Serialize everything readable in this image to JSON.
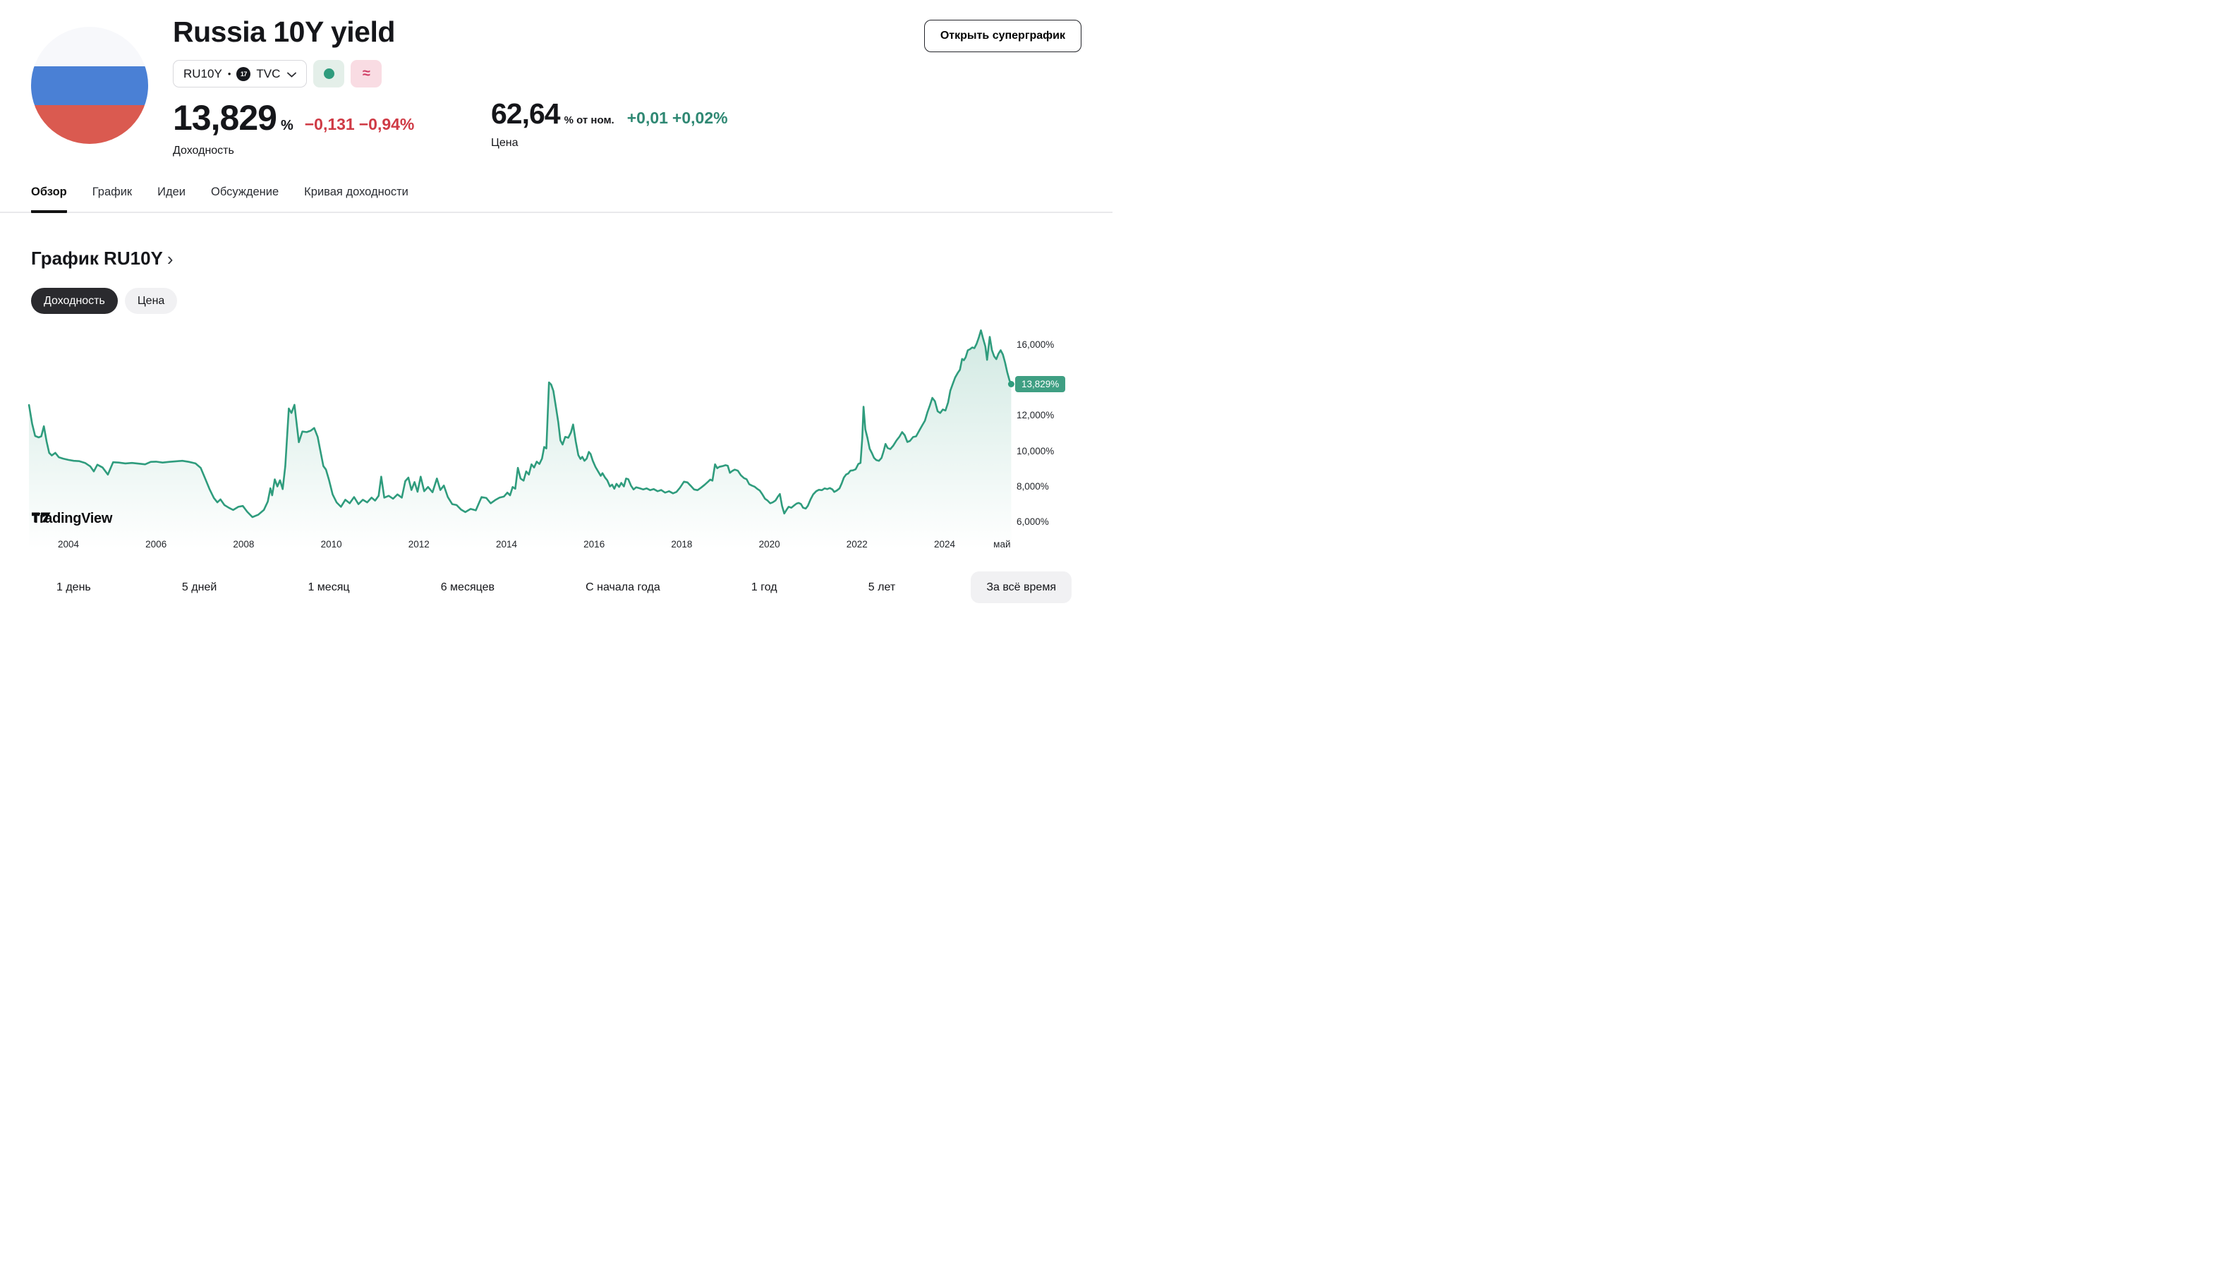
{
  "header": {
    "title": "Russia 10Y yield",
    "symbol": "RU10Y",
    "bullet": "•",
    "tv_monogram": "17",
    "exchange": "TVC",
    "open_superchart_label": "Открыть суперграфик",
    "yield": {
      "value": "13,829",
      "unit": "%",
      "change_abs": "−0,131",
      "change_pct": "−0,94%",
      "label": "Доходность"
    },
    "price": {
      "value": "62,64",
      "unit": "% от ном.",
      "change_abs": "+0,01",
      "change_pct": "+0,02%",
      "label": "Цена"
    }
  },
  "tabs": [
    {
      "label": "Обзор",
      "active": true
    },
    {
      "label": "График",
      "active": false
    },
    {
      "label": "Идеи",
      "active": false
    },
    {
      "label": "Обсуждение",
      "active": false
    },
    {
      "label": "Кривая доходности",
      "active": false
    }
  ],
  "section": {
    "title": "График RU10Y",
    "chevron": "›",
    "toggles": [
      {
        "label": "Доходность",
        "active": true
      },
      {
        "label": "Цена",
        "active": false
      }
    ]
  },
  "chart_data": {
    "type": "area",
    "series_name": "RU10Y yield, %",
    "title": "График RU10Y",
    "grid": false,
    "legend_position": "none",
    "last_value_label": "13,829%",
    "ylim": [
      5.6,
      17.4
    ],
    "xlim": [
      2003.1,
      2025.7
    ],
    "y_ticks": [
      {
        "value": 16,
        "label": "16,000%"
      },
      {
        "value": 14,
        "label": "14,000%"
      },
      {
        "value": 12,
        "label": "12,000%"
      },
      {
        "value": 10,
        "label": "10,000%"
      },
      {
        "value": 8,
        "label": "8,000%"
      },
      {
        "value": 6,
        "label": "6,000%"
      }
    ],
    "x_ticks": [
      {
        "value": 2004,
        "label": "2004"
      },
      {
        "value": 2006,
        "label": "2006"
      },
      {
        "value": 2008,
        "label": "2008"
      },
      {
        "value": 2010,
        "label": "2010"
      },
      {
        "value": 2012,
        "label": "2012"
      },
      {
        "value": 2014,
        "label": "2014"
      },
      {
        "value": 2016,
        "label": "2016"
      },
      {
        "value": 2018,
        "label": "2018"
      },
      {
        "value": 2020,
        "label": "2020"
      },
      {
        "value": 2022,
        "label": "2022"
      },
      {
        "value": 2024,
        "label": "2024"
      },
      {
        "value": 2025.31,
        "label": "май"
      }
    ],
    "points": [
      [
        2003.1,
        12.65
      ],
      [
        2003.17,
        11.6
      ],
      [
        2003.24,
        10.9
      ],
      [
        2003.32,
        10.82
      ],
      [
        2003.38,
        10.88
      ],
      [
        2003.44,
        11.45
      ],
      [
        2003.5,
        10.6
      ],
      [
        2003.56,
        9.95
      ],
      [
        2003.62,
        9.8
      ],
      [
        2003.7,
        9.95
      ],
      [
        2003.78,
        9.7
      ],
      [
        2003.88,
        9.62
      ],
      [
        2004.0,
        9.55
      ],
      [
        2004.12,
        9.5
      ],
      [
        2004.25,
        9.48
      ],
      [
        2004.38,
        9.38
      ],
      [
        2004.5,
        9.18
      ],
      [
        2004.58,
        8.9
      ],
      [
        2004.66,
        9.28
      ],
      [
        2004.78,
        9.12
      ],
      [
        2004.9,
        8.72
      ],
      [
        2005.02,
        9.42
      ],
      [
        2005.15,
        9.4
      ],
      [
        2005.3,
        9.35
      ],
      [
        2005.45,
        9.38
      ],
      [
        2005.6,
        9.34
      ],
      [
        2005.75,
        9.3
      ],
      [
        2005.88,
        9.44
      ],
      [
        2006.0,
        9.45
      ],
      [
        2006.15,
        9.4
      ],
      [
        2006.3,
        9.44
      ],
      [
        2006.45,
        9.47
      ],
      [
        2006.6,
        9.5
      ],
      [
        2006.75,
        9.44
      ],
      [
        2006.9,
        9.35
      ],
      [
        2007.02,
        9.1
      ],
      [
        2007.12,
        8.5
      ],
      [
        2007.22,
        7.9
      ],
      [
        2007.32,
        7.4
      ],
      [
        2007.4,
        7.15
      ],
      [
        2007.47,
        7.32
      ],
      [
        2007.56,
        7.0
      ],
      [
        2007.66,
        6.85
      ],
      [
        2007.76,
        6.72
      ],
      [
        2007.88,
        6.9
      ],
      [
        2007.98,
        6.95
      ],
      [
        2008.08,
        6.62
      ],
      [
        2008.2,
        6.32
      ],
      [
        2008.33,
        6.45
      ],
      [
        2008.46,
        6.72
      ],
      [
        2008.55,
        7.2
      ],
      [
        2008.61,
        7.95
      ],
      [
        2008.65,
        7.55
      ],
      [
        2008.71,
        8.45
      ],
      [
        2008.77,
        8.05
      ],
      [
        2008.83,
        8.4
      ],
      [
        2008.89,
        7.9
      ],
      [
        2008.95,
        9.2
      ],
      [
        2009.03,
        12.45
      ],
      [
        2009.09,
        12.2
      ],
      [
        2009.16,
        12.66
      ],
      [
        2009.26,
        10.55
      ],
      [
        2009.34,
        11.15
      ],
      [
        2009.44,
        11.12
      ],
      [
        2009.53,
        11.2
      ],
      [
        2009.61,
        11.35
      ],
      [
        2009.69,
        10.85
      ],
      [
        2009.76,
        9.95
      ],
      [
        2009.82,
        9.2
      ],
      [
        2009.88,
        9.0
      ],
      [
        2009.95,
        8.4
      ],
      [
        2010.03,
        7.6
      ],
      [
        2010.12,
        7.15
      ],
      [
        2010.22,
        6.9
      ],
      [
        2010.32,
        7.3
      ],
      [
        2010.42,
        7.1
      ],
      [
        2010.52,
        7.45
      ],
      [
        2010.62,
        7.05
      ],
      [
        2010.72,
        7.3
      ],
      [
        2010.82,
        7.15
      ],
      [
        2010.92,
        7.42
      ],
      [
        2011.0,
        7.25
      ],
      [
        2011.08,
        7.52
      ],
      [
        2011.14,
        8.6
      ],
      [
        2011.21,
        7.42
      ],
      [
        2011.31,
        7.52
      ],
      [
        2011.41,
        7.36
      ],
      [
        2011.51,
        7.6
      ],
      [
        2011.61,
        7.42
      ],
      [
        2011.69,
        8.35
      ],
      [
        2011.76,
        8.55
      ],
      [
        2011.83,
        7.85
      ],
      [
        2011.9,
        8.3
      ],
      [
        2011.97,
        7.75
      ],
      [
        2012.04,
        8.6
      ],
      [
        2012.12,
        7.78
      ],
      [
        2012.21,
        8.02
      ],
      [
        2012.31,
        7.72
      ],
      [
        2012.41,
        8.5
      ],
      [
        2012.49,
        7.85
      ],
      [
        2012.57,
        8.1
      ],
      [
        2012.66,
        7.45
      ],
      [
        2012.76,
        7.05
      ],
      [
        2012.86,
        7.0
      ],
      [
        2012.96,
        6.75
      ],
      [
        2013.06,
        6.6
      ],
      [
        2013.18,
        6.78
      ],
      [
        2013.3,
        6.7
      ],
      [
        2013.43,
        7.45
      ],
      [
        2013.54,
        7.4
      ],
      [
        2013.64,
        7.1
      ],
      [
        2013.74,
        7.28
      ],
      [
        2013.84,
        7.42
      ],
      [
        2013.94,
        7.48
      ],
      [
        2014.02,
        7.7
      ],
      [
        2014.08,
        7.55
      ],
      [
        2014.14,
        8.02
      ],
      [
        2014.2,
        7.92
      ],
      [
        2014.26,
        9.1
      ],
      [
        2014.32,
        8.5
      ],
      [
        2014.39,
        8.38
      ],
      [
        2014.45,
        8.9
      ],
      [
        2014.51,
        8.72
      ],
      [
        2014.57,
        9.3
      ],
      [
        2014.63,
        9.12
      ],
      [
        2014.69,
        9.45
      ],
      [
        2014.75,
        9.32
      ],
      [
        2014.81,
        9.62
      ],
      [
        2014.86,
        10.28
      ],
      [
        2014.91,
        10.2
      ],
      [
        2014.97,
        13.93
      ],
      [
        2015.02,
        13.8
      ],
      [
        2015.07,
        13.45
      ],
      [
        2015.13,
        12.5
      ],
      [
        2015.18,
        11.7
      ],
      [
        2015.23,
        10.65
      ],
      [
        2015.28,
        10.42
      ],
      [
        2015.34,
        10.85
      ],
      [
        2015.41,
        10.8
      ],
      [
        2015.47,
        11.1
      ],
      [
        2015.52,
        11.55
      ],
      [
        2015.58,
        10.6
      ],
      [
        2015.64,
        9.82
      ],
      [
        2015.69,
        9.6
      ],
      [
        2015.73,
        9.72
      ],
      [
        2015.78,
        9.5
      ],
      [
        2015.83,
        9.62
      ],
      [
        2015.88,
        10.0
      ],
      [
        2015.92,
        9.88
      ],
      [
        2015.97,
        9.5
      ],
      [
        2016.03,
        9.15
      ],
      [
        2016.09,
        8.9
      ],
      [
        2016.15,
        8.65
      ],
      [
        2016.19,
        8.8
      ],
      [
        2016.25,
        8.55
      ],
      [
        2016.3,
        8.4
      ],
      [
        2016.36,
        8.05
      ],
      [
        2016.41,
        8.15
      ],
      [
        2016.46,
        7.92
      ],
      [
        2016.51,
        8.2
      ],
      [
        2016.57,
        8.02
      ],
      [
        2016.62,
        8.25
      ],
      [
        2016.68,
        8.05
      ],
      [
        2016.73,
        8.5
      ],
      [
        2016.78,
        8.46
      ],
      [
        2016.84,
        8.1
      ],
      [
        2016.9,
        7.88
      ],
      [
        2016.96,
        8.0
      ],
      [
        2017.04,
        7.95
      ],
      [
        2017.12,
        7.88
      ],
      [
        2017.2,
        7.94
      ],
      [
        2017.28,
        7.84
      ],
      [
        2017.36,
        7.9
      ],
      [
        2017.45,
        7.78
      ],
      [
        2017.53,
        7.85
      ],
      [
        2017.62,
        7.7
      ],
      [
        2017.71,
        7.78
      ],
      [
        2017.8,
        7.66
      ],
      [
        2017.88,
        7.74
      ],
      [
        2017.96,
        7.98
      ],
      [
        2018.05,
        8.32
      ],
      [
        2018.13,
        8.28
      ],
      [
        2018.2,
        8.1
      ],
      [
        2018.28,
        7.88
      ],
      [
        2018.36,
        7.84
      ],
      [
        2018.44,
        7.98
      ],
      [
        2018.52,
        8.14
      ],
      [
        2018.6,
        8.32
      ],
      [
        2018.65,
        8.44
      ],
      [
        2018.7,
        8.38
      ],
      [
        2018.76,
        9.3
      ],
      [
        2018.81,
        9.08
      ],
      [
        2018.86,
        9.16
      ],
      [
        2018.93,
        9.2
      ],
      [
        2019.0,
        9.25
      ],
      [
        2019.05,
        9.22
      ],
      [
        2019.1,
        8.82
      ],
      [
        2019.15,
        8.92
      ],
      [
        2019.21,
        9.0
      ],
      [
        2019.28,
        8.94
      ],
      [
        2019.35,
        8.68
      ],
      [
        2019.42,
        8.52
      ],
      [
        2019.48,
        8.46
      ],
      [
        2019.54,
        8.18
      ],
      [
        2019.6,
        8.1
      ],
      [
        2019.66,
        8.04
      ],
      [
        2019.72,
        7.92
      ],
      [
        2019.78,
        7.82
      ],
      [
        2019.84,
        7.6
      ],
      [
        2019.9,
        7.36
      ],
      [
        2019.96,
        7.25
      ],
      [
        2020.02,
        7.1
      ],
      [
        2020.08,
        7.16
      ],
      [
        2020.14,
        7.26
      ],
      [
        2020.19,
        7.46
      ],
      [
        2020.24,
        7.62
      ],
      [
        2020.29,
        6.95
      ],
      [
        2020.34,
        6.52
      ],
      [
        2020.39,
        6.72
      ],
      [
        2020.44,
        6.9
      ],
      [
        2020.5,
        6.85
      ],
      [
        2020.56,
        6.97
      ],
      [
        2020.62,
        7.08
      ],
      [
        2020.67,
        7.12
      ],
      [
        2020.72,
        7.06
      ],
      [
        2020.77,
        6.85
      ],
      [
        2020.83,
        6.8
      ],
      [
        2020.88,
        6.96
      ],
      [
        2020.94,
        7.32
      ],
      [
        2021.0,
        7.6
      ],
      [
        2021.07,
        7.78
      ],
      [
        2021.13,
        7.86
      ],
      [
        2021.2,
        7.84
      ],
      [
        2021.26,
        7.94
      ],
      [
        2021.32,
        7.9
      ],
      [
        2021.38,
        7.96
      ],
      [
        2021.44,
        7.88
      ],
      [
        2021.48,
        7.74
      ],
      [
        2021.54,
        7.82
      ],
      [
        2021.6,
        7.94
      ],
      [
        2021.65,
        8.22
      ],
      [
        2021.7,
        8.55
      ],
      [
        2021.75,
        8.72
      ],
      [
        2021.8,
        8.78
      ],
      [
        2021.85,
        8.94
      ],
      [
        2021.91,
        8.96
      ],
      [
        2021.97,
        9.02
      ],
      [
        2022.03,
        9.32
      ],
      [
        2022.08,
        9.38
      ],
      [
        2022.12,
        10.8
      ],
      [
        2022.15,
        12.55
      ],
      [
        2022.19,
        11.28
      ],
      [
        2022.24,
        10.78
      ],
      [
        2022.29,
        10.18
      ],
      [
        2022.34,
        9.94
      ],
      [
        2022.39,
        9.66
      ],
      [
        2022.44,
        9.54
      ],
      [
        2022.5,
        9.5
      ],
      [
        2022.56,
        9.66
      ],
      [
        2022.61,
        10.06
      ],
      [
        2022.65,
        10.45
      ],
      [
        2022.7,
        10.22
      ],
      [
        2022.76,
        10.16
      ],
      [
        2022.83,
        10.36
      ],
      [
        2022.9,
        10.64
      ],
      [
        2022.97,
        10.86
      ],
      [
        2023.03,
        11.12
      ],
      [
        2023.09,
        10.94
      ],
      [
        2023.15,
        10.56
      ],
      [
        2023.21,
        10.62
      ],
      [
        2023.28,
        10.84
      ],
      [
        2023.35,
        10.88
      ],
      [
        2023.42,
        11.2
      ],
      [
        2023.49,
        11.5
      ],
      [
        2023.55,
        11.76
      ],
      [
        2023.61,
        12.26
      ],
      [
        2023.66,
        12.6
      ],
      [
        2023.72,
        13.05
      ],
      [
        2023.78,
        12.86
      ],
      [
        2023.84,
        12.3
      ],
      [
        2023.9,
        12.2
      ],
      [
        2023.96,
        12.4
      ],
      [
        2024.02,
        12.34
      ],
      [
        2024.08,
        12.8
      ],
      [
        2024.13,
        13.46
      ],
      [
        2024.18,
        13.8
      ],
      [
        2024.24,
        14.2
      ],
      [
        2024.3,
        14.46
      ],
      [
        2024.35,
        14.64
      ],
      [
        2024.4,
        15.25
      ],
      [
        2024.44,
        15.18
      ],
      [
        2024.48,
        15.34
      ],
      [
        2024.53,
        15.74
      ],
      [
        2024.58,
        15.8
      ],
      [
        2024.63,
        15.9
      ],
      [
        2024.68,
        15.86
      ],
      [
        2024.73,
        16.1
      ],
      [
        2024.78,
        16.45
      ],
      [
        2024.83,
        16.87
      ],
      [
        2024.88,
        16.4
      ],
      [
        2024.93,
        15.95
      ],
      [
        2024.97,
        15.2
      ],
      [
        2025.03,
        16.5
      ],
      [
        2025.08,
        15.75
      ],
      [
        2025.13,
        15.4
      ],
      [
        2025.18,
        15.24
      ],
      [
        2025.23,
        15.55
      ],
      [
        2025.28,
        15.74
      ],
      [
        2025.33,
        15.5
      ],
      [
        2025.38,
        15.05
      ],
      [
        2025.43,
        14.5
      ],
      [
        2025.48,
        14.05
      ],
      [
        2025.52,
        13.83
      ]
    ]
  },
  "attribution": {
    "logo_text": "TradingView"
  },
  "ranges": [
    {
      "label": "1 день",
      "active": false
    },
    {
      "label": "5 дней",
      "active": false
    },
    {
      "label": "1 месяц",
      "active": false
    },
    {
      "label": "6 месяцев",
      "active": false
    },
    {
      "label": "С начала года",
      "active": false
    },
    {
      "label": "1 год",
      "active": false
    },
    {
      "label": "5 лет",
      "active": false
    },
    {
      "label": "За всё время",
      "active": true
    }
  ],
  "colors": {
    "accent_teal": "#2f9c7d",
    "tag_bg": "#3f9f83",
    "red": "#cf3a45",
    "green": "#2f8873",
    "flag_blue": "#4a80d5",
    "flag_red": "#da5a50",
    "pill_dark": "#2a2a2e",
    "pill_light": "#f1f1f3",
    "dot_pill": "#e4efe9",
    "approx_pill": "#f9dce3",
    "approx": "#cf3b63",
    "divider": "#e9e9ec"
  }
}
